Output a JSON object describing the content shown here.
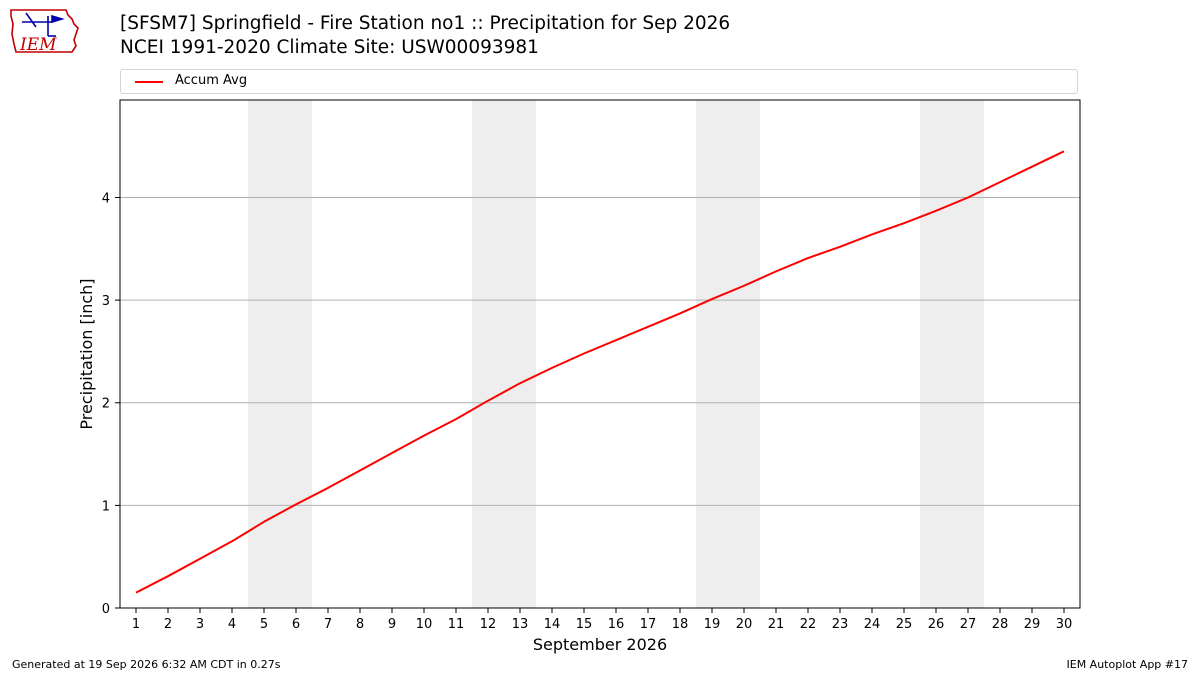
{
  "title": "[SFSM7] Springfield - Fire Station no1 :: Precipitation for Sep 2026",
  "subtitle": "NCEI 1991-2020 Climate Site: USW00093981",
  "logo_text": "IEM",
  "footer": {
    "generated": "Generated at 19 Sep 2026 6:32 AM CDT in 0.27s",
    "app": "IEM Autoplot App #17"
  },
  "colors": {
    "series": "#ff0000",
    "weekend_band": "#eeeeee",
    "grid": "#b0b0b0"
  },
  "chart_data": {
    "type": "line",
    "xlabel": "September 2026",
    "ylabel": "Precipitation [inch]",
    "xlim": [
      0.5,
      30.5
    ],
    "ylim": [
      0,
      4.95
    ],
    "yticks": [
      0,
      1,
      2,
      3,
      4
    ],
    "x": [
      1,
      2,
      3,
      4,
      5,
      6,
      7,
      8,
      9,
      10,
      11,
      12,
      13,
      14,
      15,
      16,
      17,
      18,
      19,
      20,
      21,
      22,
      23,
      24,
      25,
      26,
      27,
      28,
      29,
      30
    ],
    "shaded_days": [
      [
        5,
        6
      ],
      [
        12,
        13
      ],
      [
        19,
        20
      ],
      [
        26,
        27
      ]
    ],
    "grid": "y-major",
    "legend_position": "top",
    "series": [
      {
        "name": "Accum Avg",
        "values": [
          0.15,
          0.31,
          0.48,
          0.65,
          0.84,
          1.01,
          1.17,
          1.34,
          1.51,
          1.68,
          1.84,
          2.02,
          2.19,
          2.34,
          2.48,
          2.61,
          2.74,
          2.87,
          3.01,
          3.14,
          3.28,
          3.41,
          3.52,
          3.64,
          3.75,
          3.87,
          4.0,
          4.15,
          4.3,
          4.45
        ]
      }
    ]
  }
}
